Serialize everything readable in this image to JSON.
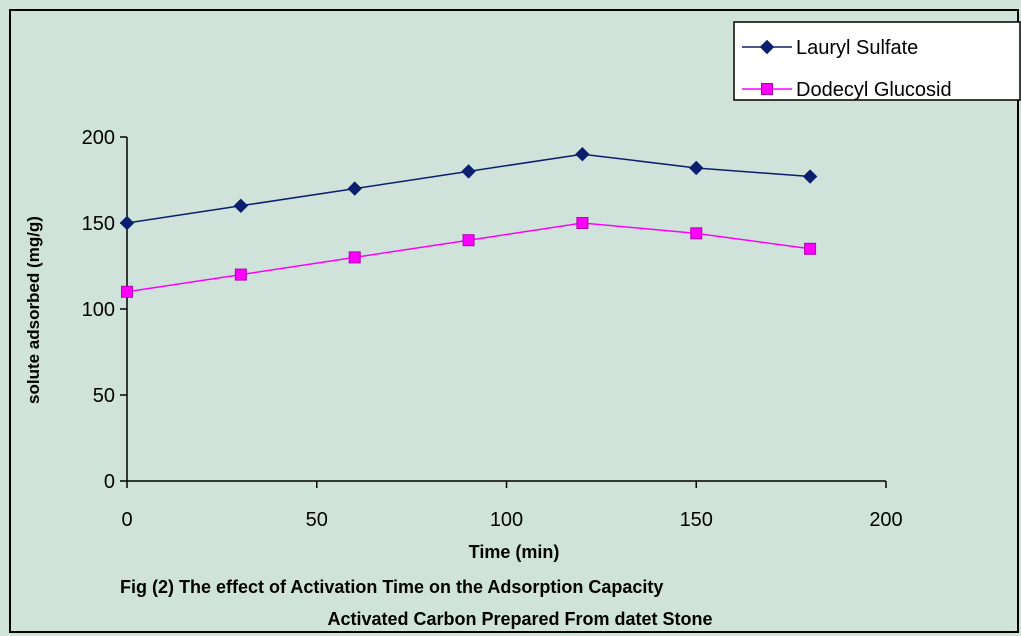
{
  "chart_data": {
    "type": "line",
    "xlabel": "Time (min)",
    "ylabel": "solute adsorbed (mg/g)",
    "xlim": [
      0,
      200
    ],
    "ylim": [
      0,
      200
    ],
    "x_ticks": [
      0,
      50,
      100,
      150,
      200
    ],
    "y_ticks": [
      0,
      50,
      100,
      150,
      200
    ],
    "grid": false,
    "legend_position": "top-right",
    "background_color": "#cfe3da",
    "series": [
      {
        "name": "Lauryl Sulfate",
        "marker": "diamond",
        "color": "#0b1f6e",
        "x": [
          0,
          30,
          60,
          90,
          120,
          150,
          180
        ],
        "values": [
          150,
          160,
          170,
          180,
          190,
          182,
          177
        ]
      },
      {
        "name": "Dodecyl Glucosid",
        "marker": "square",
        "color": "#ff00ff",
        "x": [
          0,
          30,
          60,
          90,
          120,
          150,
          180
        ],
        "values": [
          110,
          120,
          130,
          140,
          150,
          144,
          135
        ]
      }
    ]
  },
  "caption": {
    "line1": "Fig (2) The effect of Activation Time on the Adsorption Capacity",
    "line2": "Activated Carbon Prepared From datet Stone"
  }
}
